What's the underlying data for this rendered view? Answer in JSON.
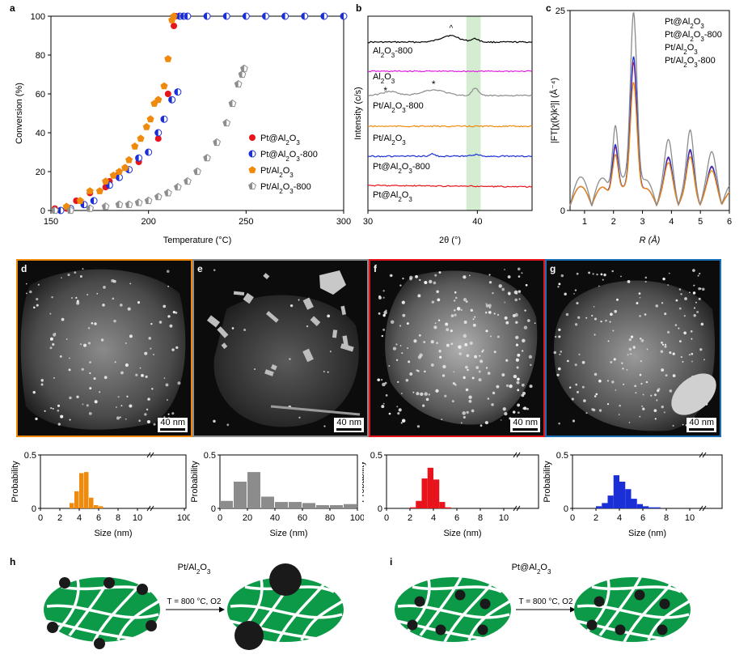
{
  "figure": {
    "panel_labels": [
      "a",
      "b",
      "c",
      "d",
      "e",
      "f",
      "g",
      "h",
      "i"
    ],
    "scale_bar": "40 nm"
  },
  "chart_data": [
    {
      "panel": "a",
      "type": "scatter",
      "xlabel": "Temperature (°C)",
      "ylabel": "Conversion (%)",
      "xlim": [
        150,
        300
      ],
      "ylim": [
        0,
        100
      ],
      "xticks": [
        150,
        200,
        250,
        300
      ],
      "yticks": [
        0,
        20,
        40,
        60,
        80,
        100
      ],
      "legend_position": "right",
      "series": [
        {
          "name": "Pt@Al2O3",
          "color": "#e8141c",
          "marker": "circle",
          "x": [
            152,
            158,
            163,
            170,
            178,
            180,
            184,
            188,
            195,
            200,
            205,
            210,
            213,
            214,
            216,
            220,
            230,
            240,
            250,
            260,
            270,
            280,
            290,
            300
          ],
          "y": [
            1,
            1,
            5,
            9,
            12,
            15,
            18,
            22,
            25,
            30,
            37,
            60,
            95,
            100,
            100,
            100,
            100,
            100,
            100,
            100,
            100,
            100,
            100,
            100
          ]
        },
        {
          "name": "Pt@Al2O3-800",
          "color": "#1a2fd6",
          "marker": "half-circle",
          "x": [
            155,
            160,
            167,
            172,
            180,
            185,
            190,
            195,
            200,
            205,
            208,
            212,
            215,
            216,
            218,
            220,
            230,
            240,
            250,
            260,
            270,
            280,
            290,
            300
          ],
          "y": [
            0,
            1,
            3,
            5,
            13,
            17,
            21,
            27,
            30,
            40,
            47,
            57,
            61,
            100,
            100,
            100,
            100,
            100,
            100,
            100,
            100,
            100,
            100,
            100
          ]
        },
        {
          "name": "Pt/Al2O3",
          "color": "#f08a0c",
          "marker": "pentagon",
          "x": [
            152,
            158,
            165,
            170,
            175,
            178,
            182,
            185,
            188,
            190,
            193,
            196,
            199,
            201,
            203,
            205,
            208,
            210,
            212,
            213
          ],
          "y": [
            0,
            2,
            5,
            10,
            10,
            15,
            18,
            20,
            22,
            26,
            33,
            37,
            43,
            47,
            55,
            57,
            64,
            78,
            98,
            100
          ]
        },
        {
          "name": "Pt/Al2O3-800",
          "color": "#8c8c8c",
          "marker": "half-pentagon",
          "x": [
            152,
            160,
            170,
            178,
            185,
            190,
            195,
            200,
            205,
            210,
            215,
            220,
            225,
            230,
            235,
            240,
            243,
            246,
            248,
            249
          ],
          "y": [
            0,
            0,
            1,
            2,
            3,
            3,
            4,
            5,
            7,
            9,
            12,
            15,
            20,
            27,
            35,
            45,
            55,
            65,
            70,
            73
          ]
        }
      ]
    },
    {
      "panel": "b",
      "type": "line",
      "xlabel": "2θ (°)",
      "ylabel": "Intensity (c/s)",
      "xlim": [
        30,
        45
      ],
      "xticks": [
        30,
        40
      ],
      "highlight_band": [
        39.0,
        40.3
      ],
      "annotations": [
        "^",
        "*",
        "*"
      ],
      "series": [
        {
          "name": "Al2O3-800",
          "color": "#000000"
        },
        {
          "name": "Al2O3",
          "color": "#e020e0"
        },
        {
          "name": "Pt/Al2O3-800",
          "color": "#8c8c8c"
        },
        {
          "name": "Pt/Al2O3",
          "color": "#f08a0c"
        },
        {
          "name": "Pt@Al2O3-800",
          "color": "#1a2fd6"
        },
        {
          "name": "Pt@Al2O3",
          "color": "#e8141c"
        }
      ]
    },
    {
      "panel": "c",
      "type": "line",
      "xlabel": "R (Å)",
      "ylabel": "|FT[χ(k)k³]| (Å⁻⁴)",
      "xlim": [
        0.5,
        6
      ],
      "ylim": [
        0,
        25
      ],
      "xticks": [
        1,
        2,
        3,
        4,
        5,
        6
      ],
      "yticks": [
        0,
        25
      ],
      "legend_position": "top-right",
      "series": [
        {
          "name": "Pt@Al2O3",
          "color": "#e8141c",
          "peak": 17.5
        },
        {
          "name": "Pt@Al2O3-800",
          "color": "#1a2fd6",
          "peak": 18.2
        },
        {
          "name": "Pt/Al2O3",
          "color": "#f08a0c",
          "peak": 15.0
        },
        {
          "name": "Pt/Al2O3-800",
          "color": "#8c8c8c",
          "peak": 23.5
        }
      ]
    },
    {
      "panel": "d",
      "type": "bar",
      "color": "#f08a0c",
      "xlabel": "Size (nm)",
      "ylabel": "Probability",
      "ylim": [
        0,
        0.5
      ],
      "yticks": [
        0,
        0.5
      ],
      "xticks": [
        "0",
        "2",
        "4",
        "6",
        "8",
        "10",
        "100"
      ],
      "x": [
        3.25,
        3.75,
        4.25,
        4.75,
        5.25,
        5.75,
        6.25
      ],
      "values": [
        0.05,
        0.16,
        0.33,
        0.34,
        0.1,
        0.03,
        0.02
      ]
    },
    {
      "panel": "e",
      "type": "bar",
      "color": "#8c8c8c",
      "xlabel": "Size (nm)",
      "ylabel": "Probability",
      "ylim": [
        0,
        0.5
      ],
      "yticks": [
        0,
        0.5
      ],
      "xticks": [
        "0",
        "20",
        "40",
        "60",
        "80",
        "100"
      ],
      "x": [
        5,
        15,
        25,
        35,
        45,
        55,
        65,
        75,
        85,
        95
      ],
      "values": [
        0.07,
        0.25,
        0.34,
        0.11,
        0.06,
        0.06,
        0.05,
        0.03,
        0.03,
        0.04
      ]
    },
    {
      "panel": "f",
      "type": "bar",
      "color": "#e8141c",
      "xlabel": "Size (nm)",
      "ylabel": "Probability",
      "ylim": [
        0,
        0.5
      ],
      "yticks": [
        0,
        0.5
      ],
      "xticks": [
        "0",
        "2",
        "4",
        "6",
        "8",
        "10"
      ],
      "x": [
        2.25,
        2.75,
        3.25,
        3.75,
        4.25,
        4.75,
        5.25
      ],
      "values": [
        0.01,
        0.07,
        0.28,
        0.38,
        0.27,
        0.06,
        0.01
      ]
    },
    {
      "panel": "g",
      "type": "bar",
      "color": "#1a2fd6",
      "xlabel": "Size (nm)",
      "ylabel": "Probability",
      "ylim": [
        0,
        0.5
      ],
      "yticks": [
        0,
        0.5
      ],
      "xticks": [
        "0",
        "2",
        "4",
        "6",
        "8",
        "10"
      ],
      "x": [
        2.25,
        2.75,
        3.25,
        3.75,
        4.25,
        4.75,
        5.25,
        5.75,
        6.25,
        6.75,
        7.25
      ],
      "values": [
        0.02,
        0.05,
        0.12,
        0.31,
        0.25,
        0.18,
        0.09,
        0.04,
        0.02,
        0.01,
        0.01
      ]
    }
  ],
  "schematics": {
    "h": {
      "title": "Pt/Al2O3",
      "condition": "T = 800 °C, O2"
    },
    "i": {
      "title": "Pt@Al2O3",
      "condition": "T = 800 °C, O2"
    }
  },
  "colors": {
    "support_green": "#0d9a48",
    "frame_d": "#f08a0c",
    "frame_e": "#8c8c8c",
    "frame_f": "#e8141c",
    "frame_g": "#1a6fb5"
  }
}
